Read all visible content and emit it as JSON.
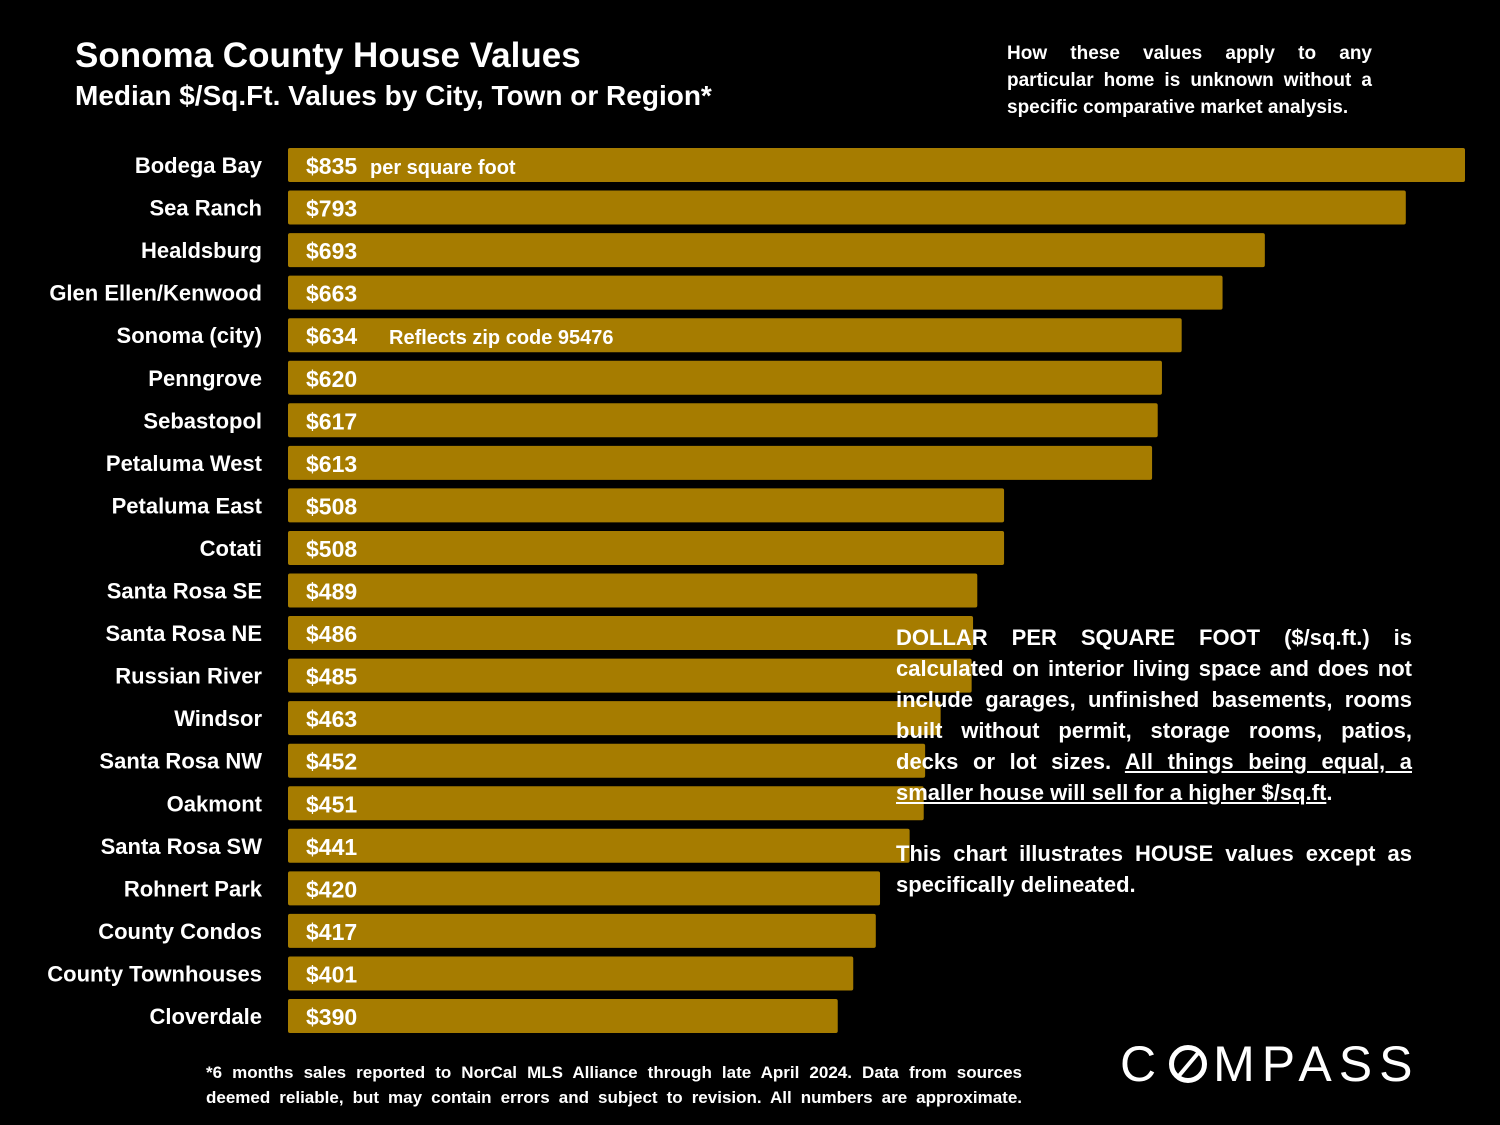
{
  "header": {
    "title": "Sonoma County House Values",
    "subtitle": "Median $/Sq.Ft. Values by City, Town or Region*"
  },
  "top_note": "How these values apply to any particular home is unknown without a specific comparative market analysis.",
  "chart_data": {
    "type": "bar",
    "orientation": "horizontal",
    "title": "Sonoma County House Values",
    "subtitle": "Median $/Sq.Ft. Values by City, Town or Region*",
    "categories": [
      "Bodega Bay",
      "Sea Ranch",
      "Healdsburg",
      "Glen Ellen/Kenwood",
      "Sonoma (city)",
      "Penngrove",
      "Sebastopol",
      "Petaluma West",
      "Petaluma East",
      "Cotati",
      "Santa Rosa SE",
      "Santa Rosa NE",
      "Russian River",
      "Windsor",
      "Santa Rosa NW",
      "Oakmont",
      "Santa Rosa SW",
      "Rohnert Park",
      "County Condos",
      "County Townhouses",
      "Cloverdale"
    ],
    "values": [
      835,
      793,
      693,
      663,
      634,
      620,
      617,
      613,
      508,
      508,
      489,
      486,
      485,
      463,
      452,
      451,
      441,
      420,
      417,
      401,
      390
    ],
    "value_labels": [
      "$835",
      "$793",
      "$693",
      "$663",
      "$634",
      "$620",
      "$617",
      "$613",
      "$508",
      "$508",
      "$489",
      "$486",
      "$485",
      "$463",
      "$452",
      "$451",
      "$441",
      "$420",
      "$417",
      "$401",
      "$390"
    ],
    "annotations": [
      {
        "category": "Bodega Bay",
        "text": "per square foot"
      },
      {
        "category": "Sonoma (city)",
        "text": "Reflects zip code 95476"
      }
    ],
    "xlim": [
      0,
      835
    ],
    "bar_color": "#A67C00",
    "xlabel": "",
    "ylabel": ""
  },
  "explain": {
    "p1_a": "DOLLAR PER SQUARE FOOT ($/sq.ft.) is calculated on interior living space and does not include garages, unfinished basements, rooms built without permit, storage rooms, patios, decks or lot sizes. ",
    "p1_u": "All things being equal, a smaller house will sell for a higher $/sq.ft",
    "p1_end": ".",
    "p2": "This chart illustrates HOUSE values except as specifically delineated."
  },
  "footnote": {
    "line1": "*6 months sales reported to NorCal MLS Alliance through late April 2024. Data from sources",
    "line2": "deemed reliable, but may contain errors and subject to revision. All numbers are approximate."
  },
  "logo": {
    "left": "C",
    "right": "MPASS"
  }
}
